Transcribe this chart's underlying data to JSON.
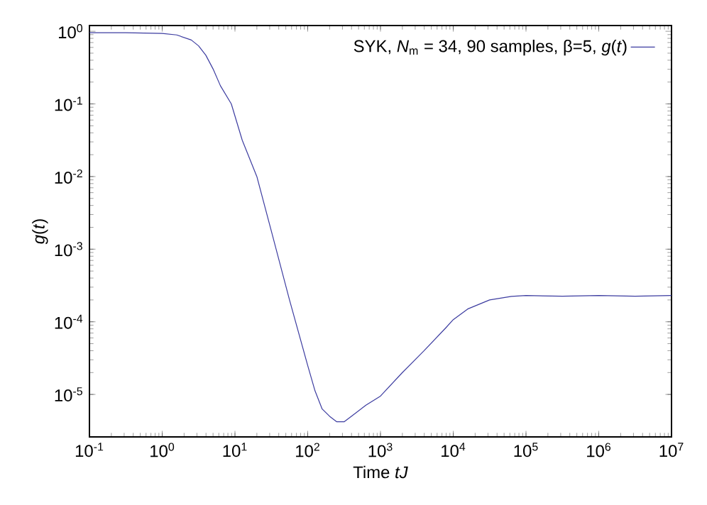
{
  "chart_data": {
    "type": "line",
    "xlabel": "Time *tJ*",
    "ylabel": "*g*(*t*)",
    "log": "xy",
    "legend": "top right",
    "grid": false,
    "marker": "none",
    "line_style": "solid",
    "xlim": [
      0.1,
      10000000
    ],
    "ylim": [
      2.6e-06,
      1.2
    ],
    "xticks": [
      {
        "value": 0.1,
        "label": "10$^{-1}$"
      },
      {
        "value": 1,
        "label": "10$^{0}$"
      },
      {
        "value": 10,
        "label": "10$^{1}$"
      },
      {
        "value": 100,
        "label": "10$^{2}$"
      },
      {
        "value": 1000,
        "label": "10$^{3}$"
      },
      {
        "value": 10000,
        "label": "10$^{4}$"
      },
      {
        "value": 100000,
        "label": "10$^{5}$"
      },
      {
        "value": 1000000,
        "label": "10$^{6}$"
      },
      {
        "value": 10000000,
        "label": "10$^{7}$"
      }
    ],
    "yticks": [
      {
        "value": 1e-05,
        "label": "10$^{-5}$"
      },
      {
        "value": 0.0001,
        "label": "10$^{-4}$"
      },
      {
        "value": 0.001,
        "label": "10$^{-3}$"
      },
      {
        "value": 0.01,
        "label": "10$^{-2}$"
      },
      {
        "value": 0.1,
        "label": "10$^{-1}$"
      },
      {
        "value": 1,
        "label": "10$^{0}$"
      }
    ],
    "series": [
      {
        "name": "SYK, *N*$_{m}$ = 34, 90 samples, β=5, *g*(*t*)",
        "color": "#3c3ca0",
        "x": [
          0.1,
          0.316,
          1,
          1.58,
          2.51,
          3.16,
          3.98,
          5.01,
          6.31,
          8.91,
          12.6,
          20,
          31.6,
          56.2,
          100,
          126,
          158,
          200,
          251,
          316,
          398,
          631,
          1000,
          2000,
          3980,
          7940,
          10000,
          15800,
          31600,
          63100,
          100000,
          316000,
          1000000,
          3160000,
          10000000
        ],
        "values": [
          0.955,
          0.955,
          0.933,
          0.891,
          0.759,
          0.631,
          0.468,
          0.302,
          0.178,
          0.1,
          0.0316,
          0.01,
          0.00178,
          0.0002,
          2.5e-05,
          1.12e-05,
          6.3e-06,
          5e-06,
          4.2e-06,
          4.2e-06,
          5e-06,
          7.1e-06,
          9.5e-06,
          2e-05,
          4e-05,
          8.3e-05,
          0.000107,
          0.00015,
          0.0002,
          0.000224,
          0.00023,
          0.000225,
          0.00023,
          0.000225,
          0.00023
        ]
      }
    ]
  }
}
